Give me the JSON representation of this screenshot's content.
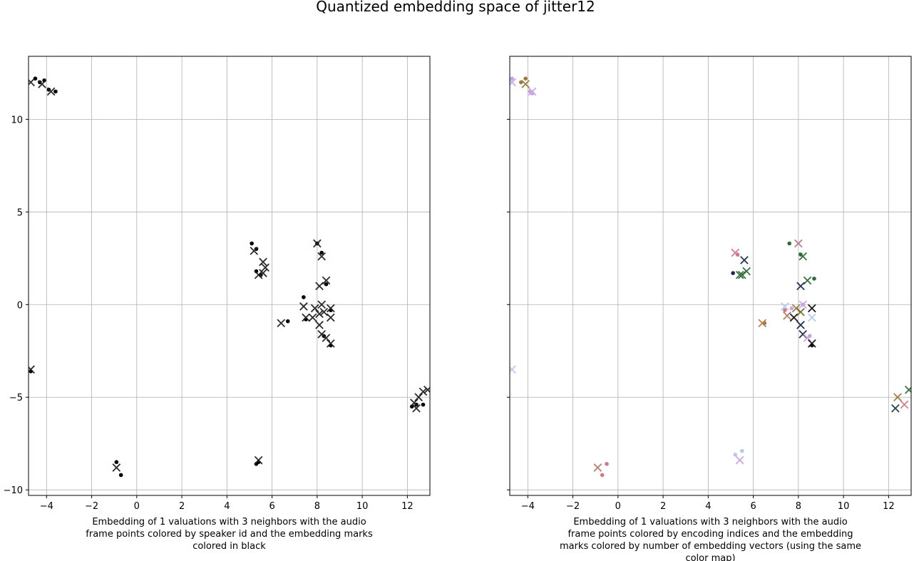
{
  "title": "Quantized embedding space of jitter12",
  "chart_data": [
    {
      "type": "scatter",
      "id": "left",
      "title": "",
      "xlabel": "Embedding of 1 valuations with 3 neighbors with the audio frame points colored by speaker id and the embedding marks colored in black",
      "xlabel_lines": [
        "Embedding of 1 valuations with 3 neighbors with the audio",
        "frame points colored by speaker id and the embedding marks",
        "colored in black"
      ],
      "ylabel": "",
      "xlim": [
        -4.8,
        13.0
      ],
      "ylim": [
        -10.3,
        13.4
      ],
      "xticks": [
        -4,
        -2,
        0,
        2,
        4,
        6,
        8,
        10,
        12
      ],
      "yticks": [
        -10,
        -5,
        0,
        5,
        10
      ],
      "grid": true,
      "series": [
        {
          "kind": "dots",
          "points": [
            [
              -4.5,
              12.2
            ],
            [
              -4.3,
              12.0
            ],
            [
              -4.1,
              12.1
            ],
            [
              -3.9,
              11.6
            ],
            [
              -3.6,
              11.5
            ],
            [
              5.1,
              3.3
            ],
            [
              5.3,
              3.0
            ],
            [
              5.3,
              1.8
            ],
            [
              5.5,
              1.6
            ],
            [
              8.0,
              3.3
            ],
            [
              8.2,
              2.8
            ],
            [
              7.4,
              0.4
            ],
            [
              7.5,
              -0.8
            ],
            [
              6.7,
              -0.9
            ],
            [
              8.4,
              1.1
            ],
            [
              8.6,
              -0.3
            ],
            [
              8.3,
              -1.7
            ],
            [
              8.6,
              -2.2
            ],
            [
              -4.7,
              -3.6
            ],
            [
              12.2,
              -5.5
            ],
            [
              12.4,
              -5.4
            ],
            [
              12.7,
              -5.4
            ],
            [
              -0.9,
              -8.5
            ],
            [
              -0.7,
              -9.2
            ],
            [
              5.3,
              -8.6
            ],
            [
              5.4,
              -8.5
            ]
          ]
        },
        {
          "kind": "crosses",
          "points": [
            [
              -4.7,
              12.0
            ],
            [
              -4.2,
              11.9
            ],
            [
              -3.8,
              11.5
            ],
            [
              5.2,
              2.9
            ],
            [
              5.6,
              2.3
            ],
            [
              5.7,
              2.0
            ],
            [
              5.4,
              1.6
            ],
            [
              5.6,
              1.7
            ],
            [
              8.0,
              3.3
            ],
            [
              8.2,
              2.6
            ],
            [
              8.4,
              1.3
            ],
            [
              8.1,
              1.0
            ],
            [
              7.4,
              -0.1
            ],
            [
              7.9,
              -0.2
            ],
            [
              8.2,
              0.0
            ],
            [
              8.6,
              -0.2
            ],
            [
              7.5,
              -0.7
            ],
            [
              7.8,
              -0.7
            ],
            [
              8.1,
              -0.5
            ],
            [
              8.3,
              -0.4
            ],
            [
              8.1,
              -1.1
            ],
            [
              8.6,
              -0.7
            ],
            [
              8.2,
              -1.6
            ],
            [
              8.4,
              -1.8
            ],
            [
              8.6,
              -2.1
            ],
            [
              6.4,
              -1.0
            ],
            [
              -4.7,
              -3.5
            ],
            [
              12.3,
              -5.3
            ],
            [
              12.5,
              -5.0
            ],
            [
              12.7,
              -4.7
            ],
            [
              12.9,
              -4.6
            ],
            [
              12.4,
              -5.6
            ],
            [
              -0.9,
              -8.8
            ],
            [
              5.4,
              -8.4
            ]
          ]
        }
      ]
    },
    {
      "type": "scatter",
      "id": "right",
      "title": "",
      "xlabel": "Embedding of 1 valuations with 3 neighbors with the audio frame points colored by encoding indices and the embedding marks colored by number of embedding vectors (using the same color map)",
      "xlabel_lines": [
        "Embedding of 1 valuations with 3 neighbors with the audio",
        "frame points colored by encoding indices and the embedding",
        "marks colored by number of embedding vectors (using the same",
        "color map)"
      ],
      "ylabel": "",
      "xlim": [
        -4.8,
        13.0
      ],
      "ylim": [
        -10.3,
        13.4
      ],
      "xticks": [
        -4,
        -2,
        0,
        2,
        4,
        6,
        8,
        10,
        12
      ],
      "yticks": [
        -10,
        -5,
        0,
        5,
        10
      ],
      "grid": true,
      "series": [
        {
          "kind": "dots",
          "points": [
            [
              -4.7,
              12.2,
              "#c9a4e0"
            ],
            [
              -4.3,
              12.0,
              "#9a7a45"
            ],
            [
              -4.1,
              12.2,
              "#9a7a45"
            ],
            [
              -3.9,
              11.5,
              "#c9a4e0"
            ],
            [
              -3.8,
              11.4,
              "#c9a4e0"
            ],
            [
              5.1,
              1.7,
              "#1c2a45"
            ],
            [
              5.3,
              2.7,
              "#cc7a8a"
            ],
            [
              7.6,
              3.3,
              "#2d6b3a"
            ],
            [
              8.1,
              2.7,
              "#2d6b3a"
            ],
            [
              8.7,
              1.4,
              "#2d6b3a"
            ],
            [
              6.5,
              -1.0,
              "#b07b4a"
            ],
            [
              7.4,
              -0.3,
              "#cc7a8a"
            ],
            [
              7.7,
              -0.2,
              "#c9a4e0"
            ],
            [
              8.2,
              0.0,
              "#c9a4e0"
            ],
            [
              8.6,
              -2.2,
              "#111111"
            ],
            [
              8.5,
              -1.7,
              "#c9a4e0"
            ],
            [
              5.2,
              -8.1,
              "#b8c8e8"
            ],
            [
              5.5,
              -7.9,
              "#b8c8e8"
            ],
            [
              -0.5,
              -8.6,
              "#cc7a8a"
            ],
            [
              -0.7,
              -9.2,
              "#cc7a8a"
            ]
          ]
        },
        {
          "kind": "crosses",
          "points": [
            [
              -4.7,
              12.0,
              "#c9a4e0"
            ],
            [
              -4.1,
              11.9,
              "#9a7a45"
            ],
            [
              -3.8,
              11.5,
              "#c9a4e0"
            ],
            [
              5.2,
              2.8,
              "#cc7a8a"
            ],
            [
              5.6,
              2.4,
              "#1c2a45"
            ],
            [
              5.4,
              1.6,
              "#2d6b3a"
            ],
            [
              5.7,
              1.8,
              "#2d6b3a"
            ],
            [
              5.5,
              1.6,
              "#2d6b3a"
            ],
            [
              8.0,
              3.3,
              "#b07b8a"
            ],
            [
              8.2,
              2.6,
              "#2d6b3a"
            ],
            [
              8.4,
              1.3,
              "#2d6b3a"
            ],
            [
              8.1,
              1.0,
              "#1c2a45"
            ],
            [
              7.4,
              -0.1,
              "#b8c8e8"
            ],
            [
              7.5,
              -0.6,
              "#b07b6a"
            ],
            [
              7.9,
              -0.2,
              "#9a7a45"
            ],
            [
              7.8,
              -0.7,
              "#111111"
            ],
            [
              8.2,
              0.0,
              "#c9a4e0"
            ],
            [
              8.1,
              -0.4,
              "#6b6b2a"
            ],
            [
              8.6,
              -0.2,
              "#111111"
            ],
            [
              8.6,
              -0.7,
              "#b8c8e8"
            ],
            [
              8.1,
              -1.1,
              "#1c2a45"
            ],
            [
              8.2,
              -1.6,
              "#1c2a45"
            ],
            [
              8.4,
              -1.8,
              "#c9a4e0"
            ],
            [
              8.6,
              -2.1,
              "#111111"
            ],
            [
              6.4,
              -1.0,
              "#b07b4a"
            ],
            [
              -4.7,
              -3.5,
              "#b8c8e8"
            ],
            [
              12.4,
              -5.0,
              "#9a7a45"
            ],
            [
              12.7,
              -5.4,
              "#cc7a8a"
            ],
            [
              12.9,
              -4.6,
              "#2d6b3a"
            ],
            [
              12.3,
              -5.6,
              "#1c3a45"
            ],
            [
              -0.9,
              -8.8,
              "#b07b6a"
            ],
            [
              5.4,
              -8.4,
              "#c9a4e0"
            ]
          ]
        }
      ]
    }
  ]
}
